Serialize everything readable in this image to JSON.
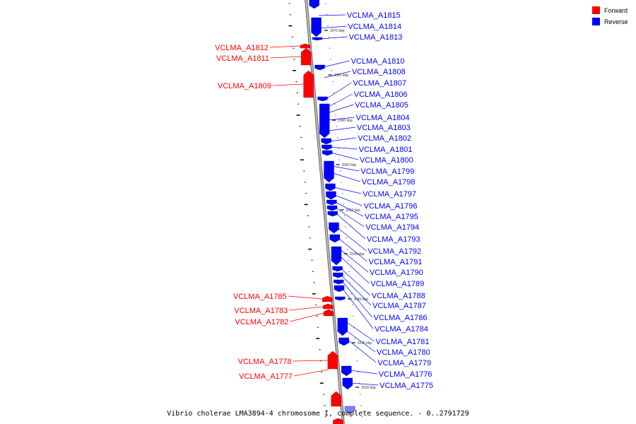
{
  "colors": {
    "forward": "#ff0000",
    "reverse": "#0000ff",
    "backbone": "#9a9a9a"
  },
  "legend": {
    "forward_label": "Forward",
    "reverse_label": "Reverse"
  },
  "footer": {
    "title": "Vibrio cholerae LMA3894-4 chromosome I, complete sequence. - 0..2791729"
  },
  "scale_ticks": [
    "2070 kbp",
    "2065 kbp",
    "2060 kbp",
    "2055 kbp",
    "2050 kbp",
    "2045 kbp",
    "2040 kbp",
    "2035 kbp",
    "2030 kbp"
  ],
  "genes_forward": [
    "VCLMA_A1812",
    "VCLMA_A1811",
    "VCLMA_A1809",
    "VCLMA_A1785",
    "VCLMA_A1783",
    "VCLMA_A1782",
    "VCLMA_A1778",
    "VCLMA_A1777"
  ],
  "genes_reverse": [
    "VCLMA_A1815",
    "VCLMA_A1814",
    "VCLMA_A1813",
    "VCLMA_A1810",
    "VCLMA_A1808",
    "VCLMA_A1807",
    "VCLMA_A1806",
    "VCLMA_A1805",
    "VCLMA_A1804",
    "VCLMA_A1803",
    "VCLMA_A1802",
    "VCLMA_A1801",
    "VCLMA_A1800",
    "VCLMA_A1799",
    "VCLMA_A1798",
    "VCLMA_A1797",
    "VCLMA_A1796",
    "VCLMA_A1795",
    "VCLMA_A1794",
    "VCLMA_A1793",
    "VCLMA_A1792",
    "VCLMA_A1791",
    "VCLMA_A1790",
    "VCLMA_A1789",
    "VCLMA_A1788",
    "VCLMA_A1787",
    "VCLMA_A1786",
    "VCLMA_A1784",
    "VCLMA_A1781",
    "VCLMA_A1780",
    "VCLMA_A1779",
    "VCLMA_A1776",
    "VCLMA_A1775"
  ]
}
